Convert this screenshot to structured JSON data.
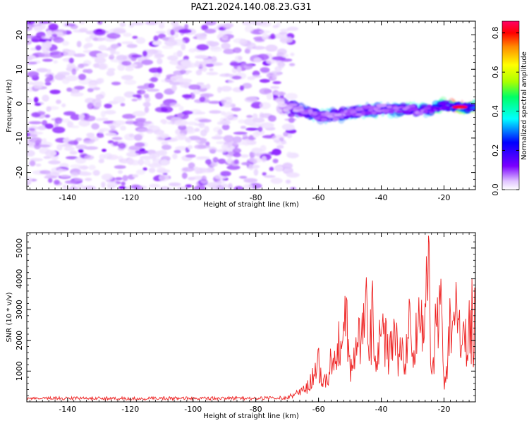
{
  "figure_title": "PAZ1.2024.140.08.23.G31",
  "chart_data": [
    {
      "type": "heatmap",
      "xlabel": "Height of straight line (km)",
      "ylabel": "Frequency (Hz)",
      "xlim": [
        -153,
        -10
      ],
      "ylim": [
        -25,
        24
      ],
      "xticks": [
        -140,
        -120,
        -100,
        -80,
        -60,
        -40,
        -20
      ],
      "yticks": [
        -20,
        -10,
        0,
        10,
        20
      ],
      "colorbar": {
        "label": "Normalized spectral amplitude",
        "range": [
          0,
          0.86
        ],
        "ticks": [
          0.0,
          0.2,
          0.4,
          0.6,
          0.8
        ],
        "colormap": [
          "#ffffff",
          "#e0c4ff",
          "#7b00ff",
          "#0000ff",
          "#00ffff",
          "#00ff66",
          "#aaff00",
          "#ffff00",
          "#ff8800",
          "#ff0000",
          "#ff0066"
        ]
      },
      "features": {
        "noise_region_x": [
          -153,
          -72
        ],
        "noise_amplitude": [
          0.02,
          0.12
        ],
        "signal_trace": {
          "x": [
            -72,
            -68,
            -64,
            -60,
            -56,
            -52,
            -48,
            -44,
            -40,
            -36,
            -32,
            -28,
            -24,
            -20,
            -16,
            -12,
            -10
          ],
          "y": [
            -0.5,
            -1,
            -2.5,
            -3.5,
            -3.5,
            -3,
            -2.5,
            -2,
            -1.5,
            -2,
            -1.5,
            -2,
            -1.5,
            -0.5,
            -1,
            -1,
            -1
          ],
          "amplitude": [
            0.1,
            0.25,
            0.3,
            0.35,
            0.3,
            0.3,
            0.35,
            0.4,
            0.3,
            0.35,
            0.4,
            0.35,
            0.45,
            0.5,
            0.8,
            0.65,
            0.6
          ]
        }
      }
    },
    {
      "type": "line",
      "xlabel": "Height of straight line (km)",
      "ylabel": "SNR (10 * v/v)",
      "xlim": [
        -153,
        -10
      ],
      "ylim": [
        0,
        5500
      ],
      "xticks": [
        -140,
        -120,
        -100,
        -80,
        -60,
        -40,
        -20
      ],
      "yticks": [
        1000,
        2000,
        3000,
        4000,
        5000
      ],
      "series": [
        {
          "color": "#ee2222",
          "x": [
            -153,
            -140,
            -120,
            -100,
            -80,
            -72,
            -68,
            -66,
            -64,
            -62,
            -60,
            -58,
            -56,
            -54,
            -52,
            -51,
            -50,
            -48,
            -46,
            -45,
            -44,
            -43,
            -42,
            -40,
            -38,
            -36,
            -34,
            -32,
            -31,
            -30,
            -28,
            -26,
            -25,
            -24,
            -22,
            -21,
            -20,
            -18,
            -16,
            -14,
            -13,
            -12,
            -10
          ],
          "y": [
            100,
            120,
            110,
            115,
            110,
            150,
            250,
            400,
            600,
            1100,
            1750,
            900,
            1400,
            1900,
            2600,
            3300,
            1500,
            2100,
            2900,
            3550,
            1800,
            3550,
            1500,
            2300,
            2200,
            2700,
            2100,
            2200,
            3200,
            1600,
            3400,
            3200,
            5400,
            1000,
            3400,
            4000,
            400,
            2800,
            3200,
            2400,
            2700,
            3300,
            3100
          ]
        }
      ]
    }
  ]
}
